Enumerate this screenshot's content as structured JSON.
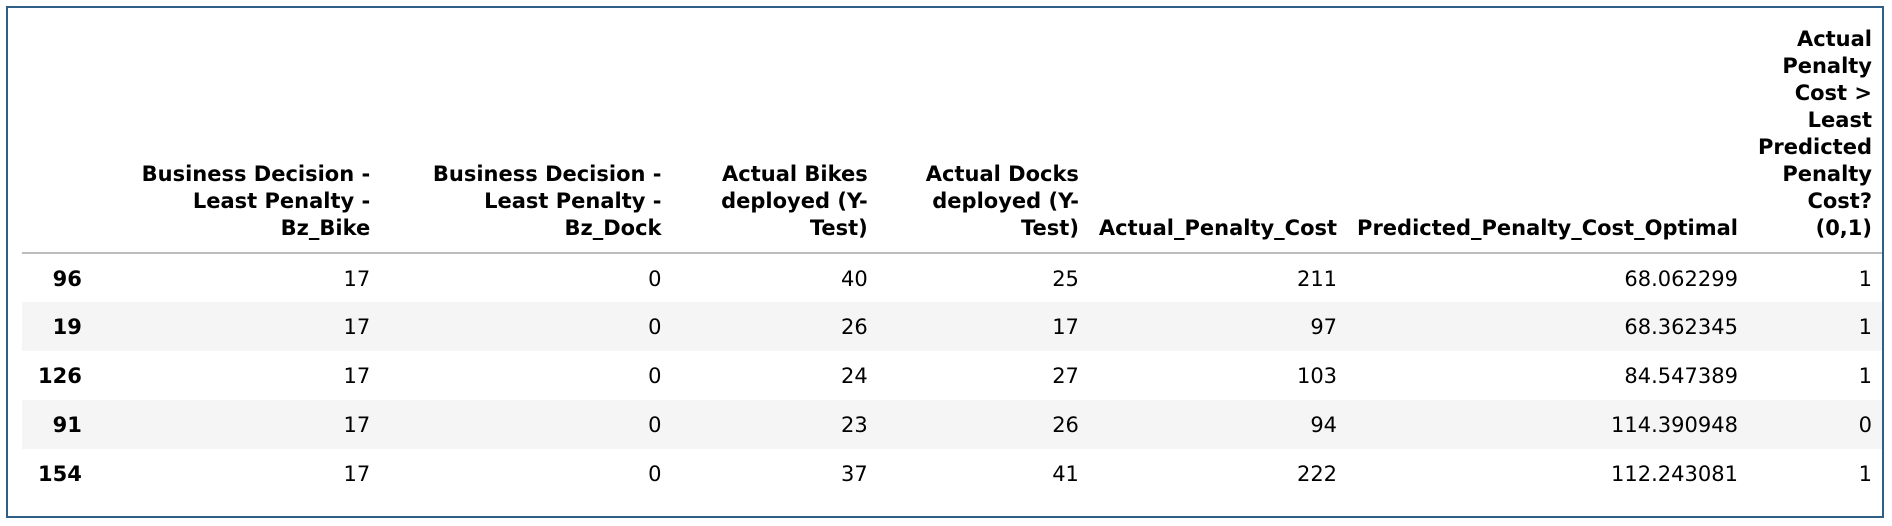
{
  "table": {
    "columns": [
      "",
      "Business Decision - Least Penalty - Bz_Bike",
      "Business Decision - Least Penalty - Bz_Dock",
      "Actual Bikes deployed (Y-Test)",
      "Actual Docks deployed (Y-Test)",
      "Actual_Penalty_Cost",
      "Predicted_Penalty_Cost_Optimal",
      "Actual Penalty Cost > Least Predicted Penalty Cost? (0,1)"
    ],
    "rows": [
      {
        "index": "96",
        "cells": [
          "17",
          "0",
          "40",
          "25",
          "211",
          "68.062299",
          "1"
        ]
      },
      {
        "index": "19",
        "cells": [
          "17",
          "0",
          "26",
          "17",
          "97",
          "68.362345",
          "1"
        ]
      },
      {
        "index": "126",
        "cells": [
          "17",
          "0",
          "24",
          "27",
          "103",
          "84.547389",
          "1"
        ]
      },
      {
        "index": "91",
        "cells": [
          "17",
          "0",
          "23",
          "26",
          "94",
          "114.390948",
          "0"
        ]
      },
      {
        "index": "154",
        "cells": [
          "17",
          "0",
          "37",
          "41",
          "222",
          "112.243081",
          "1"
        ]
      }
    ]
  },
  "colors": {
    "border": "#2f5f86",
    "stripe": "#f5f5f5",
    "header_rule": "#bdbdbd"
  }
}
